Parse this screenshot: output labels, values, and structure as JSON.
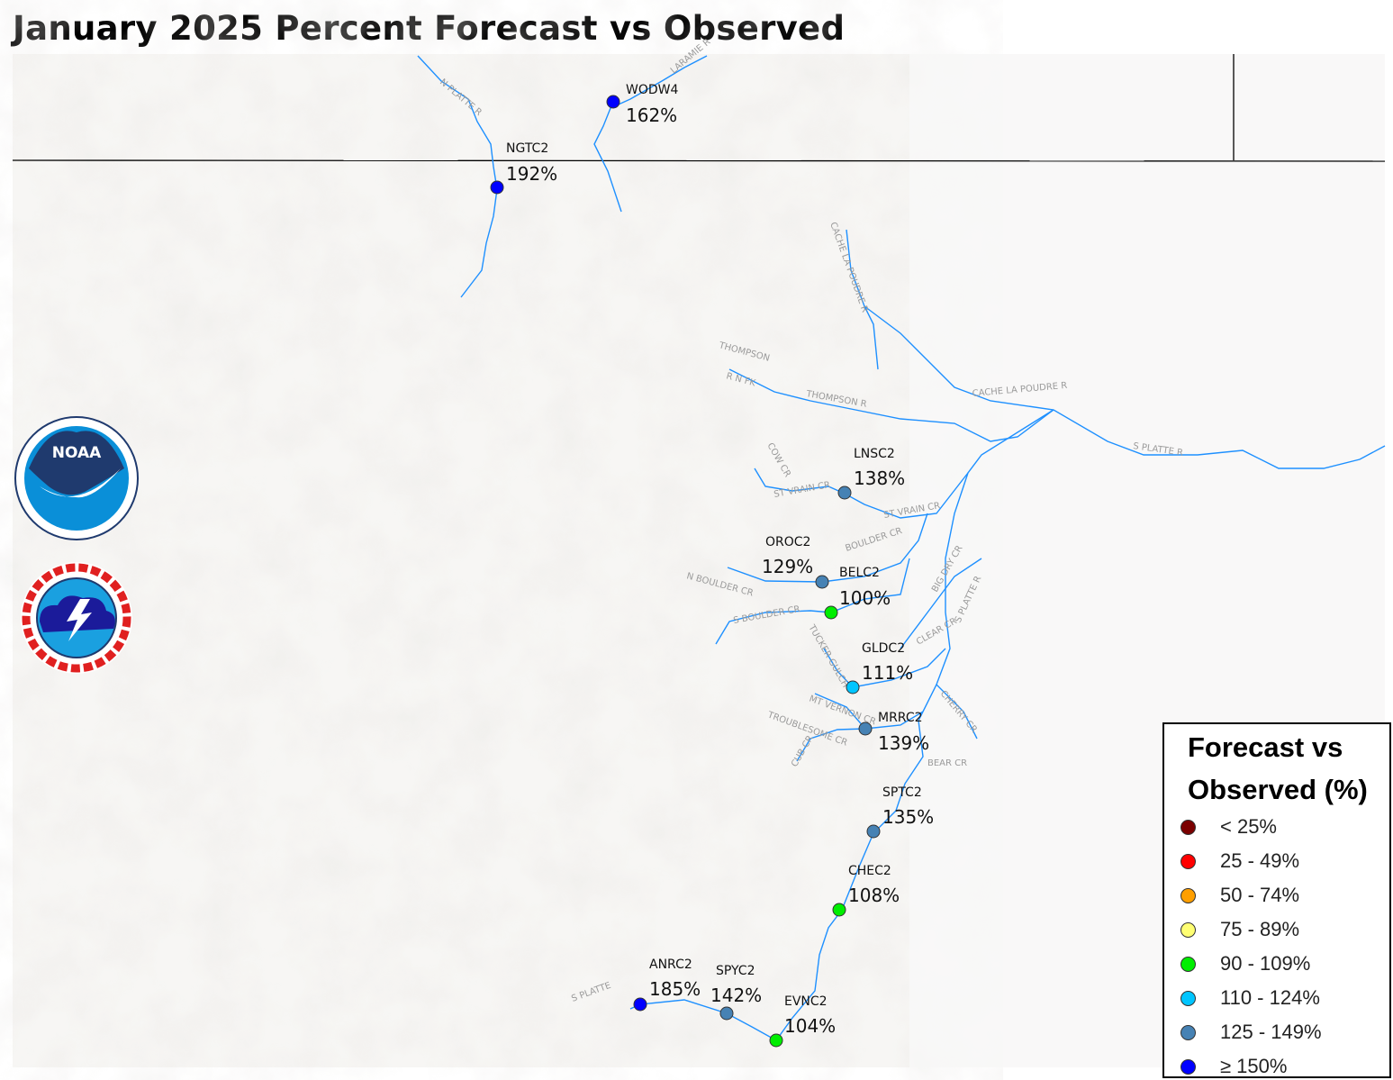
{
  "title": "January 2025 Percent Forecast vs Observed",
  "legend": {
    "title_line1": "Forecast vs",
    "title_line2": "Observed (%)",
    "items": [
      {
        "label": "< 25%",
        "color": "#7b0000"
      },
      {
        "label": "25 - 49%",
        "color": "#ff0000"
      },
      {
        "label": "50 - 74%",
        "color": "#ff9f00"
      },
      {
        "label": "75 - 89%",
        "color": "#ffff73"
      },
      {
        "label": "90 - 109%",
        "color": "#00ee00"
      },
      {
        "label": "110 - 124%",
        "color": "#00c5ff"
      },
      {
        "label": "125 - 149%",
        "color": "#4682b4"
      },
      {
        "label": "≥ 150%",
        "color": "#0000ff"
      }
    ]
  },
  "stations": [
    {
      "id": "WODW4",
      "pct": "162%",
      "color": "#0000ff"
    },
    {
      "id": "NGTC2",
      "pct": "192%",
      "color": "#0000ff"
    },
    {
      "id": "LNSC2",
      "pct": "138%",
      "color": "#4682b4"
    },
    {
      "id": "OROC2",
      "pct": "129%",
      "color": "#4682b4"
    },
    {
      "id": "BELC2",
      "pct": "100%",
      "color": "#00ee00"
    },
    {
      "id": "GLDC2",
      "pct": "111%",
      "color": "#00c5ff"
    },
    {
      "id": "MRRC2",
      "pct": "139%",
      "color": "#4682b4"
    },
    {
      "id": "SPTC2",
      "pct": "135%",
      "color": "#4682b4"
    },
    {
      "id": "CHEC2",
      "pct": "108%",
      "color": "#00ee00"
    },
    {
      "id": "ANRC2",
      "pct": "185%",
      "color": "#0000ff"
    },
    {
      "id": "SPYC2",
      "pct": "142%",
      "color": "#4682b4"
    },
    {
      "id": "EVNC2",
      "pct": "104%",
      "color": "#00ee00"
    }
  ],
  "river_labels": {
    "n_platte": "N PLATTE R",
    "laramie": "LARAMIE R",
    "cache_upper": "CACHE LA POUDRE R",
    "cache_lower": "CACHE LA POUDRE R",
    "thompson": "THOMPSON",
    "thompson_nfk": "R N FK",
    "thompson_r": "THOMPSON R",
    "s_platte": "S PLATTE R",
    "st_vrain_1": "ST VRAIN CR",
    "st_vrain_2": "ST VRAIN CR",
    "cow": "COW CR",
    "boulder": "BOULDER CR",
    "n_boulder": "N BOULDER CR",
    "s_boulder": "S BOULDER CR",
    "big_dry": "BIG DRY CR",
    "s_platte_2": "S PLATTE R",
    "clear": "CLEAR CR",
    "tucker": "TUCKER GULCH",
    "mt_vernon": "MT VERNON CR",
    "troublesome": "TROUBLESOME CR",
    "bear": "BEAR CR",
    "cub": "CUB CR",
    "cherry": "CHERRY CR",
    "s_platte_3": "S PLATTE"
  },
  "logos": {
    "noaa": "NOAA",
    "nws": "NATIONAL WEATHER SERVICE"
  },
  "colors": {
    "river": "#1e90ff",
    "terrain": "#f3f2f0"
  }
}
